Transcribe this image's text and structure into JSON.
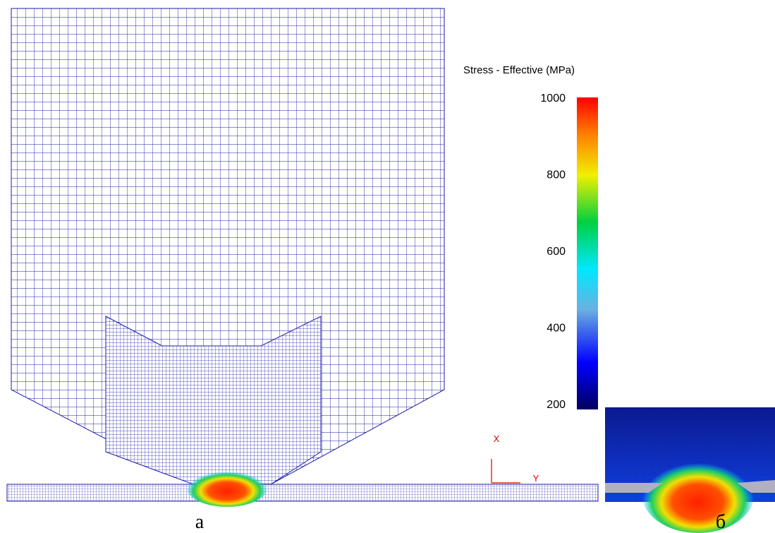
{
  "legend": {
    "title": "Stress - Effective (MPa)",
    "range": [
      185,
      1000
    ],
    "ticks": [
      1000,
      800,
      600,
      400,
      200
    ]
  },
  "axes": {
    "x": "X",
    "y": "Y"
  },
  "captions": [
    "а",
    "б"
  ]
}
